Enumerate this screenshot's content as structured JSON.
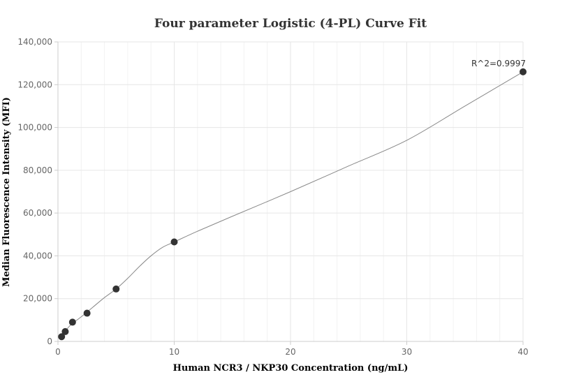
{
  "chart_data": {
    "type": "scatter",
    "title": "Four parameter Logistic (4-PL) Curve Fit",
    "xlabel": "Human NCR3 / NKP30 Concentration (ng/mL)",
    "ylabel": "Median Fluorescence Intensity (MFI)",
    "xlim": [
      0,
      40
    ],
    "ylim": [
      0,
      140000
    ],
    "x_ticks": [
      0,
      10,
      20,
      30,
      40
    ],
    "y_ticks": [
      0,
      20000,
      40000,
      60000,
      80000,
      100000,
      120000,
      140000
    ],
    "x_tick_labels": [
      "0",
      "10",
      "20",
      "30",
      "40"
    ],
    "y_tick_labels": [
      "0",
      "20,000",
      "40,000",
      "60,000",
      "80,000",
      "100,000",
      "120,000",
      "140,000"
    ],
    "grid": true,
    "series": [
      {
        "x": [
          0.3125,
          0.625,
          1.25,
          2.5,
          5,
          10,
          40
        ],
        "y": [
          2200,
          4600,
          9000,
          13200,
          24500,
          46500,
          126000
        ]
      }
    ],
    "fit_curve": {
      "x": [
        0.3125,
        1,
        2,
        3,
        4,
        5,
        6,
        7,
        8,
        9,
        10,
        12,
        15,
        20,
        25,
        30,
        35,
        40
      ],
      "y": [
        2200,
        7200,
        11500,
        16000,
        20500,
        24500,
        29500,
        35000,
        40000,
        44000,
        46500,
        51500,
        58500,
        70000,
        82000,
        94000,
        110000,
        126000
      ]
    },
    "annotations": [
      {
        "text": "R^2=0.9997",
        "x": 40,
        "y": 126000
      }
    ],
    "colors": {
      "point": "#333333",
      "line": "#888888",
      "grid": "#e6e6e6",
      "axis": "#cccccc"
    }
  }
}
